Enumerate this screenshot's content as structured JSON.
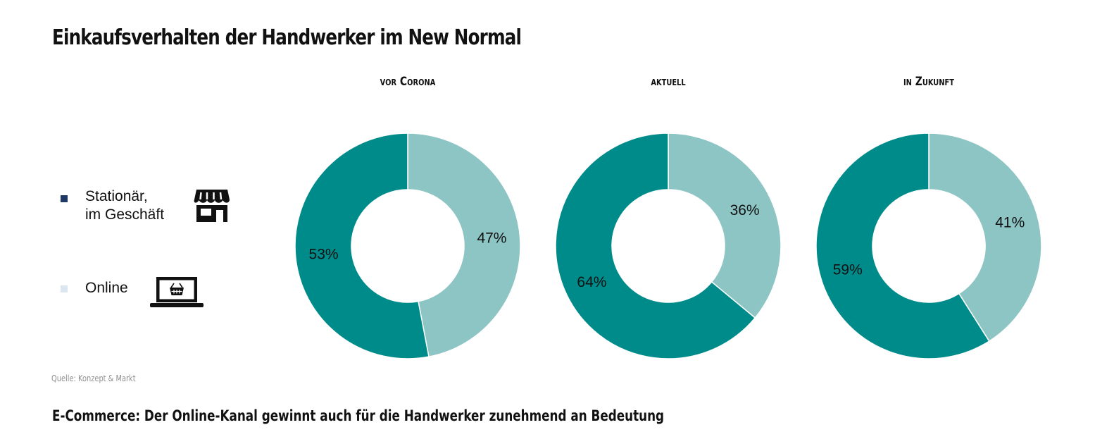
{
  "title": "Einkaufsverhalten der Handwerker im New Normal",
  "legend": [
    {
      "label": "Stationär,\nim Geschäft",
      "color": "#1f3864",
      "icon": "store-icon"
    },
    {
      "label": "Online",
      "color": "#dce6f1",
      "icon": "laptop-basket-icon"
    }
  ],
  "source": "Quelle: Konzept & Markt",
  "caption": "E-Commerce: Der Online-Kanal gewinnt auch für die Handwerker zunehmend an Bedeutung",
  "colors": {
    "stationaer": "#008b8b",
    "online": "#8dc5c4"
  },
  "chart_data": [
    {
      "type": "pie",
      "title": "vor Corona",
      "categories": [
        "Online",
        "Stationär, im Geschäft"
      ],
      "values": [
        47,
        53
      ],
      "labels": [
        "47%",
        "53%"
      ]
    },
    {
      "type": "pie",
      "title": "aktuell",
      "categories": [
        "Online",
        "Stationär, im Geschäft"
      ],
      "values": [
        36,
        64
      ],
      "labels": [
        "36%",
        "64%"
      ]
    },
    {
      "type": "pie",
      "title": "in Zukunft",
      "categories": [
        "Online",
        "Stationär, im Geschäft"
      ],
      "values": [
        41,
        59
      ],
      "labels": [
        "41%",
        "59%"
      ]
    }
  ]
}
